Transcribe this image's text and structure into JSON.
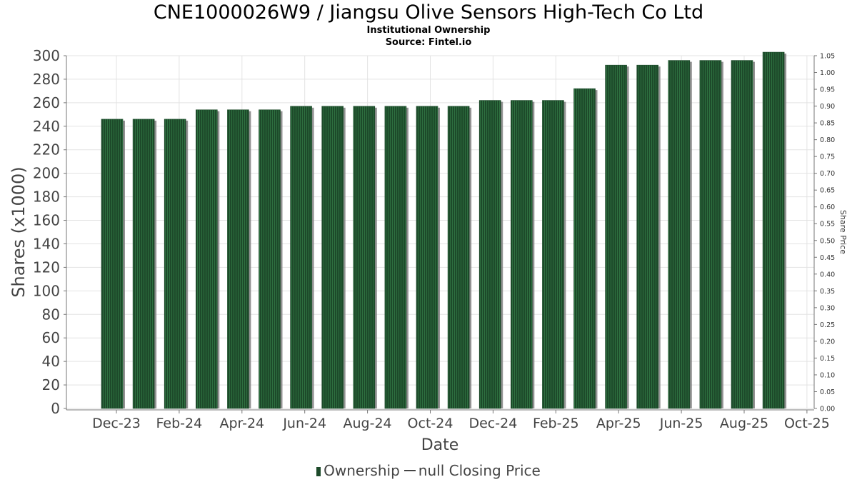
{
  "header": {
    "title": "CNE1000026W9 / Jiangsu Olive Sensors High-Tech Co Ltd",
    "subtitle": "Institutional Ownership",
    "source": "Source: Fintel.io"
  },
  "legend": {
    "ownership_label": "Ownership",
    "price_label": "null Closing Price"
  },
  "colors": {
    "bar": "#1d4a2a",
    "bar_stripe": "#2e7040",
    "bar_shadow": "#7f7f7f",
    "grid": "#e3e3e3"
  },
  "chart_data": {
    "type": "bar",
    "title": "CNE1000026W9 / Jiangsu Olive Sensors High-Tech Co Ltd",
    "xlabel": "Date",
    "ylabel": "Shares (x1000)",
    "y2label": "Share Price",
    "x_tick_labels": [
      "Dec-23",
      "Feb-24",
      "Apr-24",
      "Jun-24",
      "Aug-24",
      "Oct-24",
      "Dec-24",
      "Feb-25",
      "Apr-25",
      "Jun-25",
      "Aug-25",
      "Oct-25"
    ],
    "ylim": [
      0,
      300
    ],
    "y_ticks": [
      0,
      20,
      40,
      60,
      80,
      100,
      120,
      140,
      160,
      180,
      200,
      220,
      240,
      260,
      280,
      300
    ],
    "y2lim": [
      0,
      1.05
    ],
    "y2_ticks": [
      "0.00",
      "0.05",
      "0.10",
      "0.15",
      "0.20",
      "0.25",
      "0.30",
      "0.35",
      "0.40",
      "0.45",
      "0.50",
      "0.55",
      "0.60",
      "0.65",
      "0.70",
      "0.75",
      "0.80",
      "0.85",
      "0.90",
      "0.95",
      "1.00",
      "1.05"
    ],
    "grid": true,
    "legend_position": "bottom",
    "series": [
      {
        "name": "Ownership",
        "values": [
          246,
          246,
          246,
          254,
          254,
          254,
          257,
          257,
          257,
          257,
          257,
          257,
          262,
          262,
          262,
          272,
          292,
          292,
          296,
          296,
          296,
          303
        ]
      }
    ]
  }
}
